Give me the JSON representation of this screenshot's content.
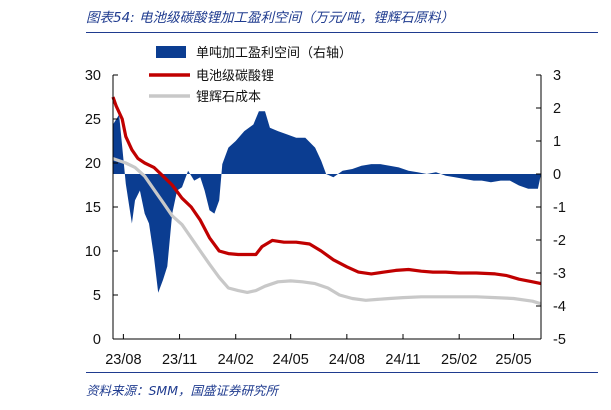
{
  "header": {
    "title": "图表54: 电池级碳酸锂加工盈利空间（万元/吨，锂辉石原料）"
  },
  "footer": {
    "source": "资料来源：SMM，国盛证券研究所"
  },
  "chart_data": {
    "type": "line+area",
    "title": "电池级碳酸锂加工盈利空间（万元/吨，锂辉石原料）",
    "grid": false,
    "legend_position": "top",
    "x_tick_labels": [
      "23/08",
      "23/11",
      "24/02",
      "24/05",
      "24/08",
      "24/11",
      "25/02",
      "25/05"
    ],
    "left_axis": {
      "ylim": [
        0,
        30
      ],
      "ticks": [
        "0",
        "5",
        "10",
        "15",
        "20",
        "25",
        "30"
      ]
    },
    "right_axis": {
      "ylim": [
        -5,
        3
      ],
      "ticks": [
        "-5",
        "-4",
        "-3",
        "-2",
        "-1",
        "0",
        "1",
        "2",
        "3"
      ]
    },
    "series": [
      {
        "name": "单吨加工盈利空间（右轴）",
        "chart_type": "area",
        "axis": "right",
        "color": "#0b3d91",
        "points": [
          [
            "2023-07-15",
            1.5
          ],
          [
            "2023-07-25",
            1.8
          ],
          [
            "2023-08-05",
            -0.3
          ],
          [
            "2023-08-15",
            -1.5
          ],
          [
            "2023-08-20",
            -0.8
          ],
          [
            "2023-08-28",
            -0.5
          ],
          [
            "2023-09-05",
            -1.2
          ],
          [
            "2023-09-12",
            -1.5
          ],
          [
            "2023-09-20",
            -2.5
          ],
          [
            "2023-09-27",
            -3.6
          ],
          [
            "2023-10-05",
            -3.2
          ],
          [
            "2023-10-12",
            -2.8
          ],
          [
            "2023-10-20",
            -1.2
          ],
          [
            "2023-10-28",
            -0.5
          ],
          [
            "2023-11-05",
            -0.4
          ],
          [
            "2023-11-15",
            0.1
          ],
          [
            "2023-11-25",
            -0.2
          ],
          [
            "2023-12-05",
            -0.1
          ],
          [
            "2023-12-12",
            -0.5
          ],
          [
            "2023-12-20",
            -1.1
          ],
          [
            "2023-12-28",
            -1.2
          ],
          [
            "2024-01-05",
            -0.8
          ],
          [
            "2024-01-10",
            0.3
          ],
          [
            "2024-01-20",
            0.8
          ],
          [
            "2024-02-01",
            1.0
          ],
          [
            "2024-02-15",
            1.3
          ],
          [
            "2024-03-01",
            1.5
          ],
          [
            "2024-03-10",
            1.9
          ],
          [
            "2024-03-20",
            1.9
          ],
          [
            "2024-03-28",
            1.4
          ],
          [
            "2024-04-10",
            1.3
          ],
          [
            "2024-04-25",
            1.2
          ],
          [
            "2024-05-10",
            1.1
          ],
          [
            "2024-05-25",
            1.1
          ],
          [
            "2024-06-10",
            0.8
          ],
          [
            "2024-06-20",
            0.4
          ],
          [
            "2024-06-28",
            0.0
          ],
          [
            "2024-07-10",
            -0.1
          ],
          [
            "2024-07-25",
            0.1
          ],
          [
            "2024-08-10",
            0.15
          ],
          [
            "2024-08-25",
            0.25
          ],
          [
            "2024-09-10",
            0.3
          ],
          [
            "2024-09-25",
            0.3
          ],
          [
            "2024-10-10",
            0.25
          ],
          [
            "2024-10-25",
            0.2
          ],
          [
            "2024-11-10",
            0.1
          ],
          [
            "2024-11-25",
            0.05
          ],
          [
            "2024-12-10",
            0.0
          ],
          [
            "2024-12-25",
            0.05
          ],
          [
            "2025-01-10",
            -0.05
          ],
          [
            "2025-01-25",
            -0.1
          ],
          [
            "2025-02-10",
            -0.15
          ],
          [
            "2025-02-25",
            -0.2
          ],
          [
            "2025-03-10",
            -0.2
          ],
          [
            "2025-03-25",
            -0.25
          ],
          [
            "2025-04-10",
            -0.2
          ],
          [
            "2025-04-25",
            -0.2
          ],
          [
            "2025-05-10",
            -0.35
          ],
          [
            "2025-05-25",
            -0.45
          ],
          [
            "2025-06-10",
            -0.45
          ],
          [
            "2025-06-15",
            0.0
          ]
        ]
      },
      {
        "name": "电池级碳酸锂",
        "chart_type": "line",
        "axis": "left",
        "color": "#c00000",
        "points": [
          [
            "2023-07-15",
            27.5
          ],
          [
            "2023-07-20",
            26.5
          ],
          [
            "2023-07-30",
            25.0
          ],
          [
            "2023-08-05",
            23.0
          ],
          [
            "2023-08-15",
            21.5
          ],
          [
            "2023-08-25",
            20.5
          ],
          [
            "2023-09-05",
            20.0
          ],
          [
            "2023-09-20",
            19.5
          ],
          [
            "2023-10-05",
            18.5
          ],
          [
            "2023-10-20",
            17.5
          ],
          [
            "2023-11-05",
            16.0
          ],
          [
            "2023-11-20",
            15.0
          ],
          [
            "2023-12-05",
            13.5
          ],
          [
            "2023-12-20",
            11.5
          ],
          [
            "2024-01-05",
            10.0
          ],
          [
            "2024-01-20",
            9.7
          ],
          [
            "2024-02-05",
            9.6
          ],
          [
            "2024-02-20",
            9.6
          ],
          [
            "2024-03-05",
            9.6
          ],
          [
            "2024-03-15",
            10.5
          ],
          [
            "2024-04-01",
            11.2
          ],
          [
            "2024-04-20",
            11.0
          ],
          [
            "2024-05-10",
            11.0
          ],
          [
            "2024-06-01",
            10.8
          ],
          [
            "2024-06-20",
            10.0
          ],
          [
            "2024-07-10",
            9.0
          ],
          [
            "2024-08-01",
            8.2
          ],
          [
            "2024-08-20",
            7.6
          ],
          [
            "2024-09-10",
            7.4
          ],
          [
            "2024-10-01",
            7.6
          ],
          [
            "2024-10-20",
            7.8
          ],
          [
            "2024-11-10",
            7.9
          ],
          [
            "2024-12-01",
            7.7
          ],
          [
            "2024-12-20",
            7.6
          ],
          [
            "2025-01-10",
            7.6
          ],
          [
            "2025-02-01",
            7.5
          ],
          [
            "2025-03-01",
            7.5
          ],
          [
            "2025-04-01",
            7.4
          ],
          [
            "2025-04-20",
            7.2
          ],
          [
            "2025-05-10",
            6.8
          ],
          [
            "2025-06-01",
            6.5
          ],
          [
            "2025-06-15",
            6.3
          ]
        ]
      },
      {
        "name": "锂辉石成本",
        "chart_type": "line",
        "axis": "left",
        "color": "#c8c8c8",
        "points": [
          [
            "2023-07-15",
            20.5
          ],
          [
            "2023-08-05",
            20.0
          ],
          [
            "2023-08-20",
            19.5
          ],
          [
            "2023-09-05",
            18.5
          ],
          [
            "2023-09-20",
            17.0
          ],
          [
            "2023-10-05",
            15.5
          ],
          [
            "2023-10-20",
            14.0
          ],
          [
            "2023-11-05",
            13.0
          ],
          [
            "2023-11-20",
            11.5
          ],
          [
            "2023-12-05",
            10.0
          ],
          [
            "2023-12-20",
            8.5
          ],
          [
            "2024-01-05",
            7.0
          ],
          [
            "2024-01-20",
            5.8
          ],
          [
            "2024-02-05",
            5.5
          ],
          [
            "2024-02-20",
            5.3
          ],
          [
            "2024-03-05",
            5.5
          ],
          [
            "2024-03-20",
            6.0
          ],
          [
            "2024-04-10",
            6.5
          ],
          [
            "2024-05-01",
            6.6
          ],
          [
            "2024-05-20",
            6.5
          ],
          [
            "2024-06-10",
            6.3
          ],
          [
            "2024-07-01",
            5.8
          ],
          [
            "2024-07-20",
            5.0
          ],
          [
            "2024-08-10",
            4.6
          ],
          [
            "2024-09-01",
            4.4
          ],
          [
            "2024-09-20",
            4.5
          ],
          [
            "2024-10-10",
            4.6
          ],
          [
            "2024-11-01",
            4.7
          ],
          [
            "2024-12-01",
            4.8
          ],
          [
            "2025-01-01",
            4.8
          ],
          [
            "2025-02-01",
            4.8
          ],
          [
            "2025-03-01",
            4.8
          ],
          [
            "2025-04-01",
            4.7
          ],
          [
            "2025-05-01",
            4.6
          ],
          [
            "2025-06-01",
            4.3
          ],
          [
            "2025-06-15",
            4.0
          ]
        ]
      }
    ]
  }
}
